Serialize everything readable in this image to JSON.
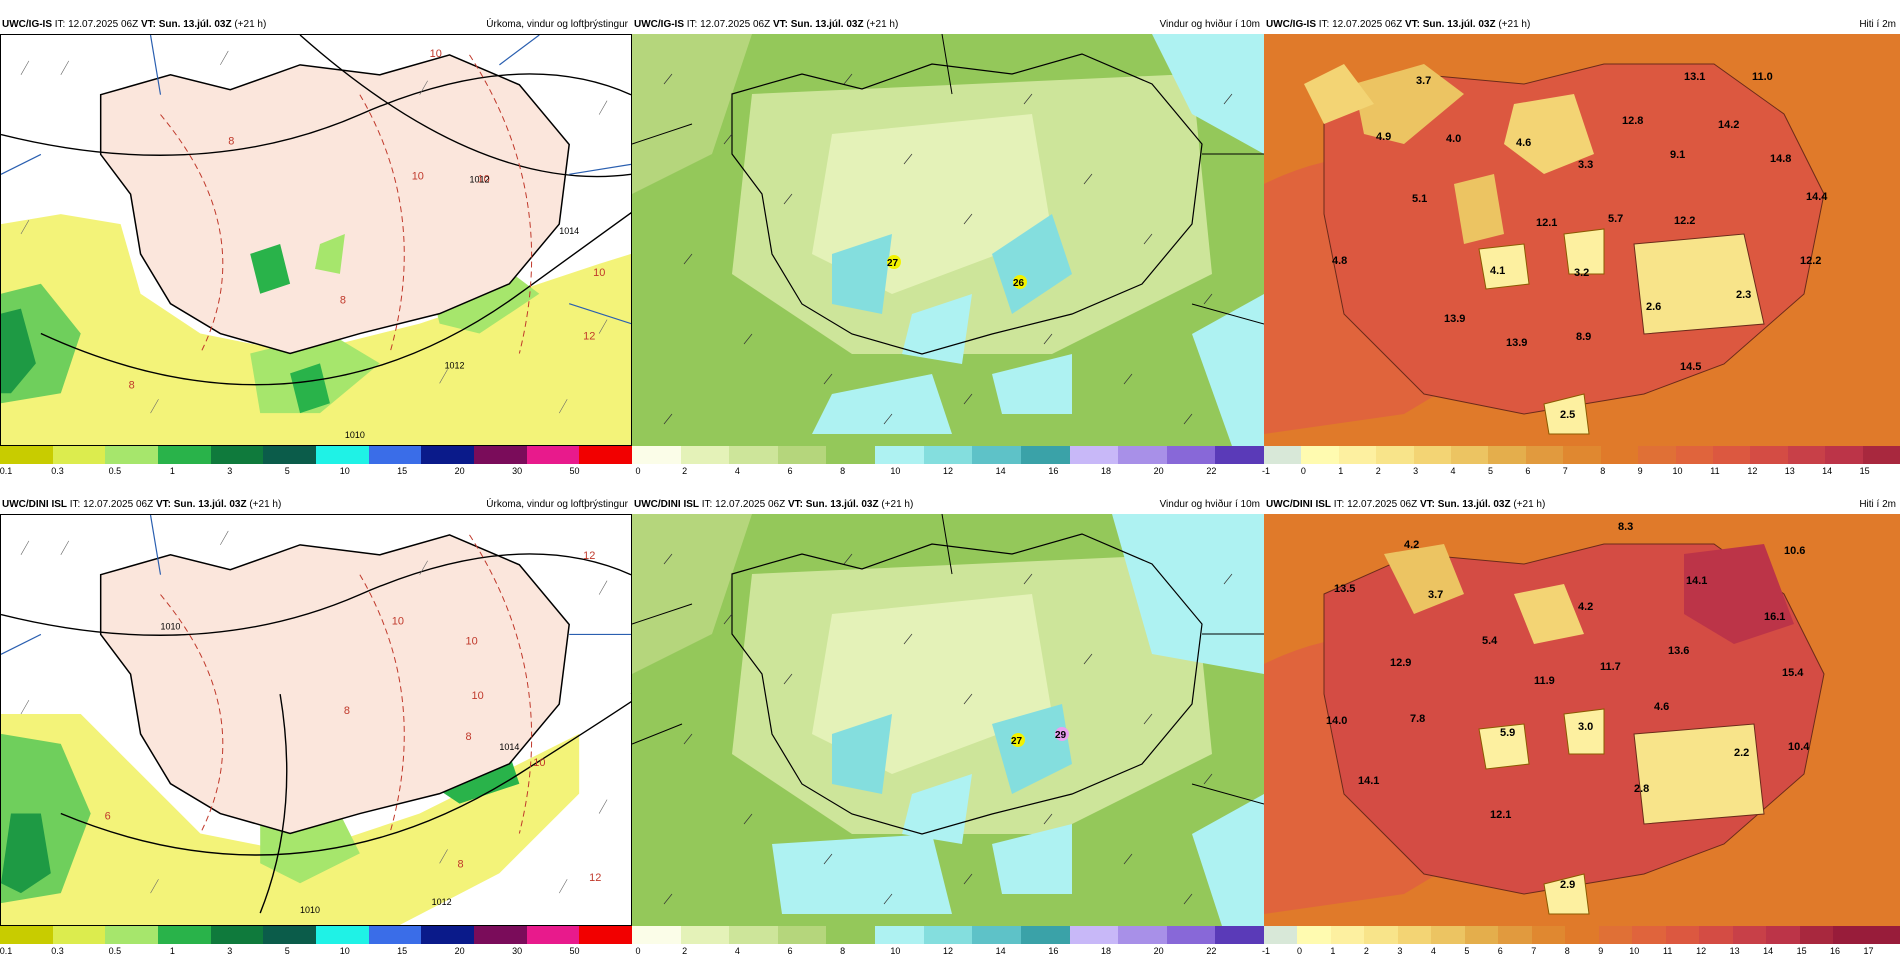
{
  "rows": [
    {
      "model": "UWC/IG-IS",
      "issue_label": "IT:",
      "issue_time": "12.07.2025 06Z",
      "valid_label": "VT:",
      "valid_time": "Sun. 13.júl. 03Z",
      "lead": "(+21 h)",
      "panels": {
        "precip": {
          "title": "Úrkoma, vindur og loftþrýstingur",
          "isobar_labels": [
            "1012",
            "1014",
            "1010",
            "1012"
          ],
          "pressure_labels": [
            "10",
            "8",
            "10",
            "10",
            "8",
            "10",
            "12",
            "8"
          ]
        },
        "wind": {
          "title": "Vindur og hviður í 10m",
          "gust_labels": [
            "27",
            "26"
          ]
        },
        "temp": {
          "title": "Hiti í 2m",
          "labels": [
            "3.7",
            "13.1",
            "11.0",
            "4.9",
            "4.0",
            "4.6",
            "12.8",
            "14.2",
            "9.1",
            "3.3",
            "14.8",
            "5.1",
            "14.4",
            "12.1",
            "5.7",
            "12.2",
            "4.8",
            "4.1",
            "3.2",
            "12.2",
            "2.6",
            "2.3",
            "13.9",
            "13.9",
            "8.9",
            "14.5",
            "2.5"
          ]
        }
      }
    },
    {
      "model": "UWC/DINI ISL",
      "issue_label": "IT:",
      "issue_time": "12.07.2025 06Z",
      "valid_label": "VT:",
      "valid_time": "Sun. 13.júl. 03Z",
      "lead": "(+21 h)",
      "panels": {
        "precip": {
          "title": "Úrkoma, vindur og loftþrýstingur",
          "isobar_labels": [
            "1010",
            "1014",
            "1010",
            "1012"
          ],
          "pressure_labels": [
            "12",
            "10",
            "10",
            "10",
            "8",
            "8",
            "10",
            "6",
            "8",
            "12"
          ]
        },
        "wind": {
          "title": "Vindur og hviður í 10m",
          "gust_labels": [
            "27",
            "29"
          ]
        },
        "temp": {
          "title": "Hiti í 2m",
          "labels": [
            "8.3",
            "4.2",
            "10.6",
            "13.5",
            "3.7",
            "14.1",
            "4.2",
            "16.1",
            "5.4",
            "12.9",
            "13.6",
            "11.9",
            "11.7",
            "15.4",
            "4.6",
            "14.0",
            "7.8",
            "5.9",
            "3.0",
            "10.4",
            "2.2",
            "14.1",
            "2.8",
            "12.1",
            "2.9"
          ]
        }
      }
    }
  ],
  "colorbars": {
    "precip": {
      "ticks": [
        "0.1",
        "0.3",
        "0.5",
        "1",
        "3",
        "5",
        "10",
        "15",
        "20",
        "30",
        "50"
      ],
      "colors": [
        "#c8cc00",
        "#dcec4e",
        "#a6e66c",
        "#29b34a",
        "#0f7a3c",
        "#0b5c4a",
        "#1ff2e6",
        "#3a6de8",
        "#0a1a8a",
        "#7a0c5a",
        "#e81a8c",
        "#f20000"
      ]
    },
    "wind": {
      "ticks": [
        "0",
        "2",
        "4",
        "6",
        "8",
        "10",
        "12",
        "14",
        "16",
        "18",
        "20",
        "22"
      ],
      "colors": [
        "#fbfde8",
        "#e4f2b8",
        "#cde59a",
        "#b5d67c",
        "#94c85a",
        "#aef2f2",
        "#84dede",
        "#5ec2c8",
        "#3aa2a8",
        "#c8b8f8",
        "#a890e8",
        "#8868d8",
        "#5a3ab8"
      ]
    },
    "temp": {
      "ticks": [
        "-1",
        "0",
        "1",
        "2",
        "3",
        "4",
        "5",
        "6",
        "7",
        "8",
        "9",
        "10",
        "11",
        "12",
        "13",
        "14",
        "15"
      ],
      "ticks_dini": [
        "-1",
        "0",
        "1",
        "2",
        "3",
        "4",
        "5",
        "6",
        "7",
        "8",
        "9",
        "10",
        "11",
        "12",
        "13",
        "14",
        "15",
        "16",
        "17"
      ],
      "colors": [
        "#d8e8d8",
        "#fffbb0",
        "#fdf0a0",
        "#f8e48a",
        "#f3d474",
        "#ecc462",
        "#e4ae4c",
        "#e19a3e",
        "#e08830",
        "#e07a2a",
        "#e07036",
        "#e0643c",
        "#dc5840",
        "#d44c44",
        "#c84048",
        "#bc3448",
        "#a8283e",
        "#981c3a"
      ]
    }
  }
}
